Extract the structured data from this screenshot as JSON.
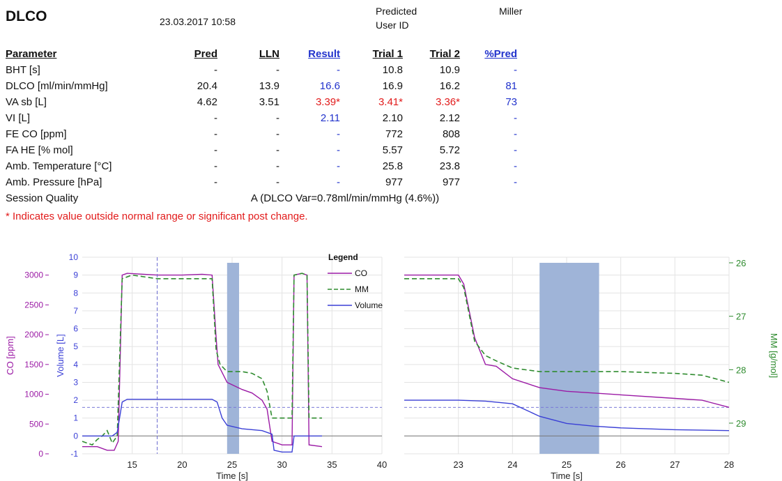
{
  "header": {
    "title": "DLCO",
    "datetime": "23.03.2017 10:58",
    "predicted": "Predicted",
    "user_id": "User ID",
    "reference": "Miller"
  },
  "table": {
    "headers": [
      "Parameter",
      "Pred",
      "LLN",
      "Result",
      "Trial 1",
      "Trial 2",
      "%Pred"
    ],
    "rows": [
      {
        "param": "BHT [s]",
        "pred": "-",
        "lln": "-",
        "result": "-",
        "t1": "10.8",
        "t2": "10.9",
        "pct": "-"
      },
      {
        "param": "DLCO [ml/min/mmHg]",
        "pred": "20.4",
        "lln": "13.9",
        "result": "16.6",
        "t1": "16.9",
        "t2": "16.2",
        "pct": "81"
      },
      {
        "param": "VA sb [L]",
        "pred": "4.62",
        "lln": "3.51",
        "result": "3.39*",
        "t1": "3.41*",
        "t2": "3.36*",
        "pct": "73"
      },
      {
        "param": "VI [L]",
        "pred": "-",
        "lln": "-",
        "result": "2.11",
        "t1": "2.10",
        "t2": "2.12",
        "pct": "-"
      },
      {
        "param": "FE CO [ppm]",
        "pred": "-",
        "lln": "-",
        "result": "-",
        "t1": "772",
        "t2": "808",
        "pct": "-"
      },
      {
        "param": "FA HE [% mol]",
        "pred": "-",
        "lln": "-",
        "result": "-",
        "t1": "5.57",
        "t2": "5.72",
        "pct": "-"
      },
      {
        "param": "Amb. Temperature [°C]",
        "pred": "-",
        "lln": "-",
        "result": "-",
        "t1": "25.8",
        "t2": "23.8",
        "pct": "-"
      },
      {
        "param": "Amb. Pressure [hPa]",
        "pred": "-",
        "lln": "-",
        "result": "-",
        "t1": "977",
        "t2": "977",
        "pct": "-"
      }
    ],
    "session_quality_label": "Session Quality",
    "session_quality_value": "A (DLCO Var=0.78ml/min/mmHg (4.6%))",
    "footnote": "* Indicates value outside normal range or significant post change."
  },
  "colors": {
    "co": "#9b1aa5",
    "mm": "#2e8b2e",
    "volume": "#3a3fd6",
    "shade": "#9fb4d8",
    "red": "#e21b1b",
    "blue": "#2233cc"
  },
  "chart_data": [
    {
      "type": "line",
      "xlabel": "Time  [s]",
      "xlim": [
        10,
        40
      ],
      "xticks": [
        15,
        20,
        25,
        30,
        35,
        40
      ],
      "y_axes": {
        "co": {
          "label": "CO [ppm]",
          "lim": [
            0,
            3000
          ],
          "ticks": [
            0,
            500,
            1000,
            1500,
            2000,
            2500,
            3000
          ]
        },
        "volume": {
          "label": "Volume [L]",
          "lim": [
            -1,
            10
          ],
          "ticks": [
            -1,
            0,
            1,
            2,
            3,
            4,
            5,
            6,
            7,
            8,
            9,
            10
          ]
        }
      },
      "legend": {
        "title": "Legend",
        "entries": [
          "CO",
          "MM",
          "Volume"
        ]
      },
      "shaded_x": [
        24.5,
        25.7
      ],
      "vline_x": 17.5,
      "series": [
        {
          "name": "CO",
          "axis": "volume",
          "points": [
            [
              10.0,
              -0.6
            ],
            [
              11.5,
              -0.6
            ],
            [
              12.5,
              -0.8
            ],
            [
              13.2,
              -0.8
            ],
            [
              13.6,
              -0.3
            ],
            [
              14.0,
              9.0
            ],
            [
              14.5,
              9.1
            ],
            [
              17.5,
              9.0
            ],
            [
              20.0,
              9.0
            ],
            [
              22.0,
              9.05
            ],
            [
              23.0,
              9.0
            ],
            [
              23.4,
              5.5
            ],
            [
              23.6,
              4.0
            ],
            [
              24.5,
              3.0
            ],
            [
              26.0,
              2.6
            ],
            [
              27.0,
              2.4
            ],
            [
              28.0,
              2.0
            ],
            [
              28.5,
              1.5
            ],
            [
              29.0,
              -0.3
            ],
            [
              30.0,
              -0.5
            ],
            [
              31.0,
              -0.5
            ],
            [
              31.2,
              9.0
            ],
            [
              32.0,
              9.1
            ],
            [
              32.5,
              9.0
            ],
            [
              32.7,
              -0.5
            ],
            [
              34.0,
              -0.6
            ]
          ]
        },
        {
          "name": "MM",
          "axis": "volume",
          "points": [
            [
              10.0,
              -0.3
            ],
            [
              11.0,
              -0.5
            ],
            [
              11.5,
              -0.2
            ],
            [
              12.0,
              0.0
            ],
            [
              12.5,
              0.3
            ],
            [
              13.0,
              -0.4
            ],
            [
              13.5,
              0.0
            ],
            [
              14.0,
              8.8
            ],
            [
              15.0,
              9.0
            ],
            [
              17.5,
              8.8
            ],
            [
              20.0,
              8.8
            ],
            [
              23.0,
              8.8
            ],
            [
              23.4,
              4.8
            ],
            [
              23.8,
              4.0
            ],
            [
              24.5,
              3.6
            ],
            [
              26.0,
              3.6
            ],
            [
              27.0,
              3.5
            ],
            [
              28.0,
              3.2
            ],
            [
              28.5,
              2.5
            ],
            [
              29.0,
              1.0
            ],
            [
              30.0,
              1.0
            ],
            [
              31.0,
              1.0
            ],
            [
              31.2,
              9.0
            ],
            [
              32.0,
              9.1
            ],
            [
              32.5,
              9.0
            ],
            [
              32.7,
              1.0
            ],
            [
              34.0,
              1.0
            ]
          ]
        },
        {
          "name": "Volume",
          "axis": "volume",
          "points": [
            [
              10.0,
              0.0
            ],
            [
              13.0,
              0.0
            ],
            [
              13.5,
              0.2
            ],
            [
              14.0,
              1.9
            ],
            [
              14.5,
              2.05
            ],
            [
              17.5,
              2.05
            ],
            [
              23.0,
              2.05
            ],
            [
              23.5,
              1.9
            ],
            [
              24.0,
              1.0
            ],
            [
              24.5,
              0.6
            ],
            [
              26.0,
              0.4
            ],
            [
              28.0,
              0.3
            ],
            [
              29.0,
              0.1
            ],
            [
              29.2,
              -0.8
            ],
            [
              30.0,
              -0.9
            ],
            [
              31.0,
              -0.9
            ],
            [
              31.2,
              0.0
            ],
            [
              34.0,
              0.0
            ]
          ]
        }
      ]
    },
    {
      "type": "line",
      "xlabel": "Time  [s]",
      "xlim": [
        22,
        28
      ],
      "xticks": [
        23,
        24,
        25,
        26,
        27,
        28
      ],
      "y_axes": {
        "mm": {
          "label": "MM [g/mol]",
          "lim": [
            26,
            29
          ],
          "ticks": [
            26,
            27,
            28,
            29
          ],
          "inverted": true
        }
      },
      "shaded_x": [
        24.5,
        25.6
      ],
      "series": [
        {
          "name": "CO",
          "axis": "volume",
          "points": [
            [
              22.0,
              9.0
            ],
            [
              23.0,
              9.0
            ],
            [
              23.1,
              8.5
            ],
            [
              23.3,
              5.5
            ],
            [
              23.5,
              4.0
            ],
            [
              23.7,
              3.9
            ],
            [
              24.0,
              3.2
            ],
            [
              24.5,
              2.7
            ],
            [
              25.0,
              2.5
            ],
            [
              25.5,
              2.4
            ],
            [
              26.0,
              2.3
            ],
            [
              27.0,
              2.1
            ],
            [
              27.5,
              2.0
            ],
            [
              28.0,
              1.6
            ]
          ]
        },
        {
          "name": "MM",
          "axis": "volume",
          "points": [
            [
              22.0,
              8.8
            ],
            [
              23.0,
              8.8
            ],
            [
              23.1,
              8.3
            ],
            [
              23.3,
              5.3
            ],
            [
              23.5,
              4.5
            ],
            [
              23.7,
              4.2
            ],
            [
              24.0,
              3.8
            ],
            [
              24.5,
              3.6
            ],
            [
              25.5,
              3.6
            ],
            [
              26.0,
              3.6
            ],
            [
              27.0,
              3.5
            ],
            [
              27.5,
              3.4
            ],
            [
              28.0,
              3.0
            ]
          ]
        },
        {
          "name": "Volume",
          "axis": "volume",
          "points": [
            [
              22.0,
              2.0
            ],
            [
              23.0,
              2.0
            ],
            [
              23.5,
              1.95
            ],
            [
              24.0,
              1.8
            ],
            [
              24.5,
              1.1
            ],
            [
              25.0,
              0.7
            ],
            [
              25.5,
              0.55
            ],
            [
              26.0,
              0.45
            ],
            [
              27.0,
              0.35
            ],
            [
              28.0,
              0.3
            ]
          ]
        }
      ]
    }
  ]
}
